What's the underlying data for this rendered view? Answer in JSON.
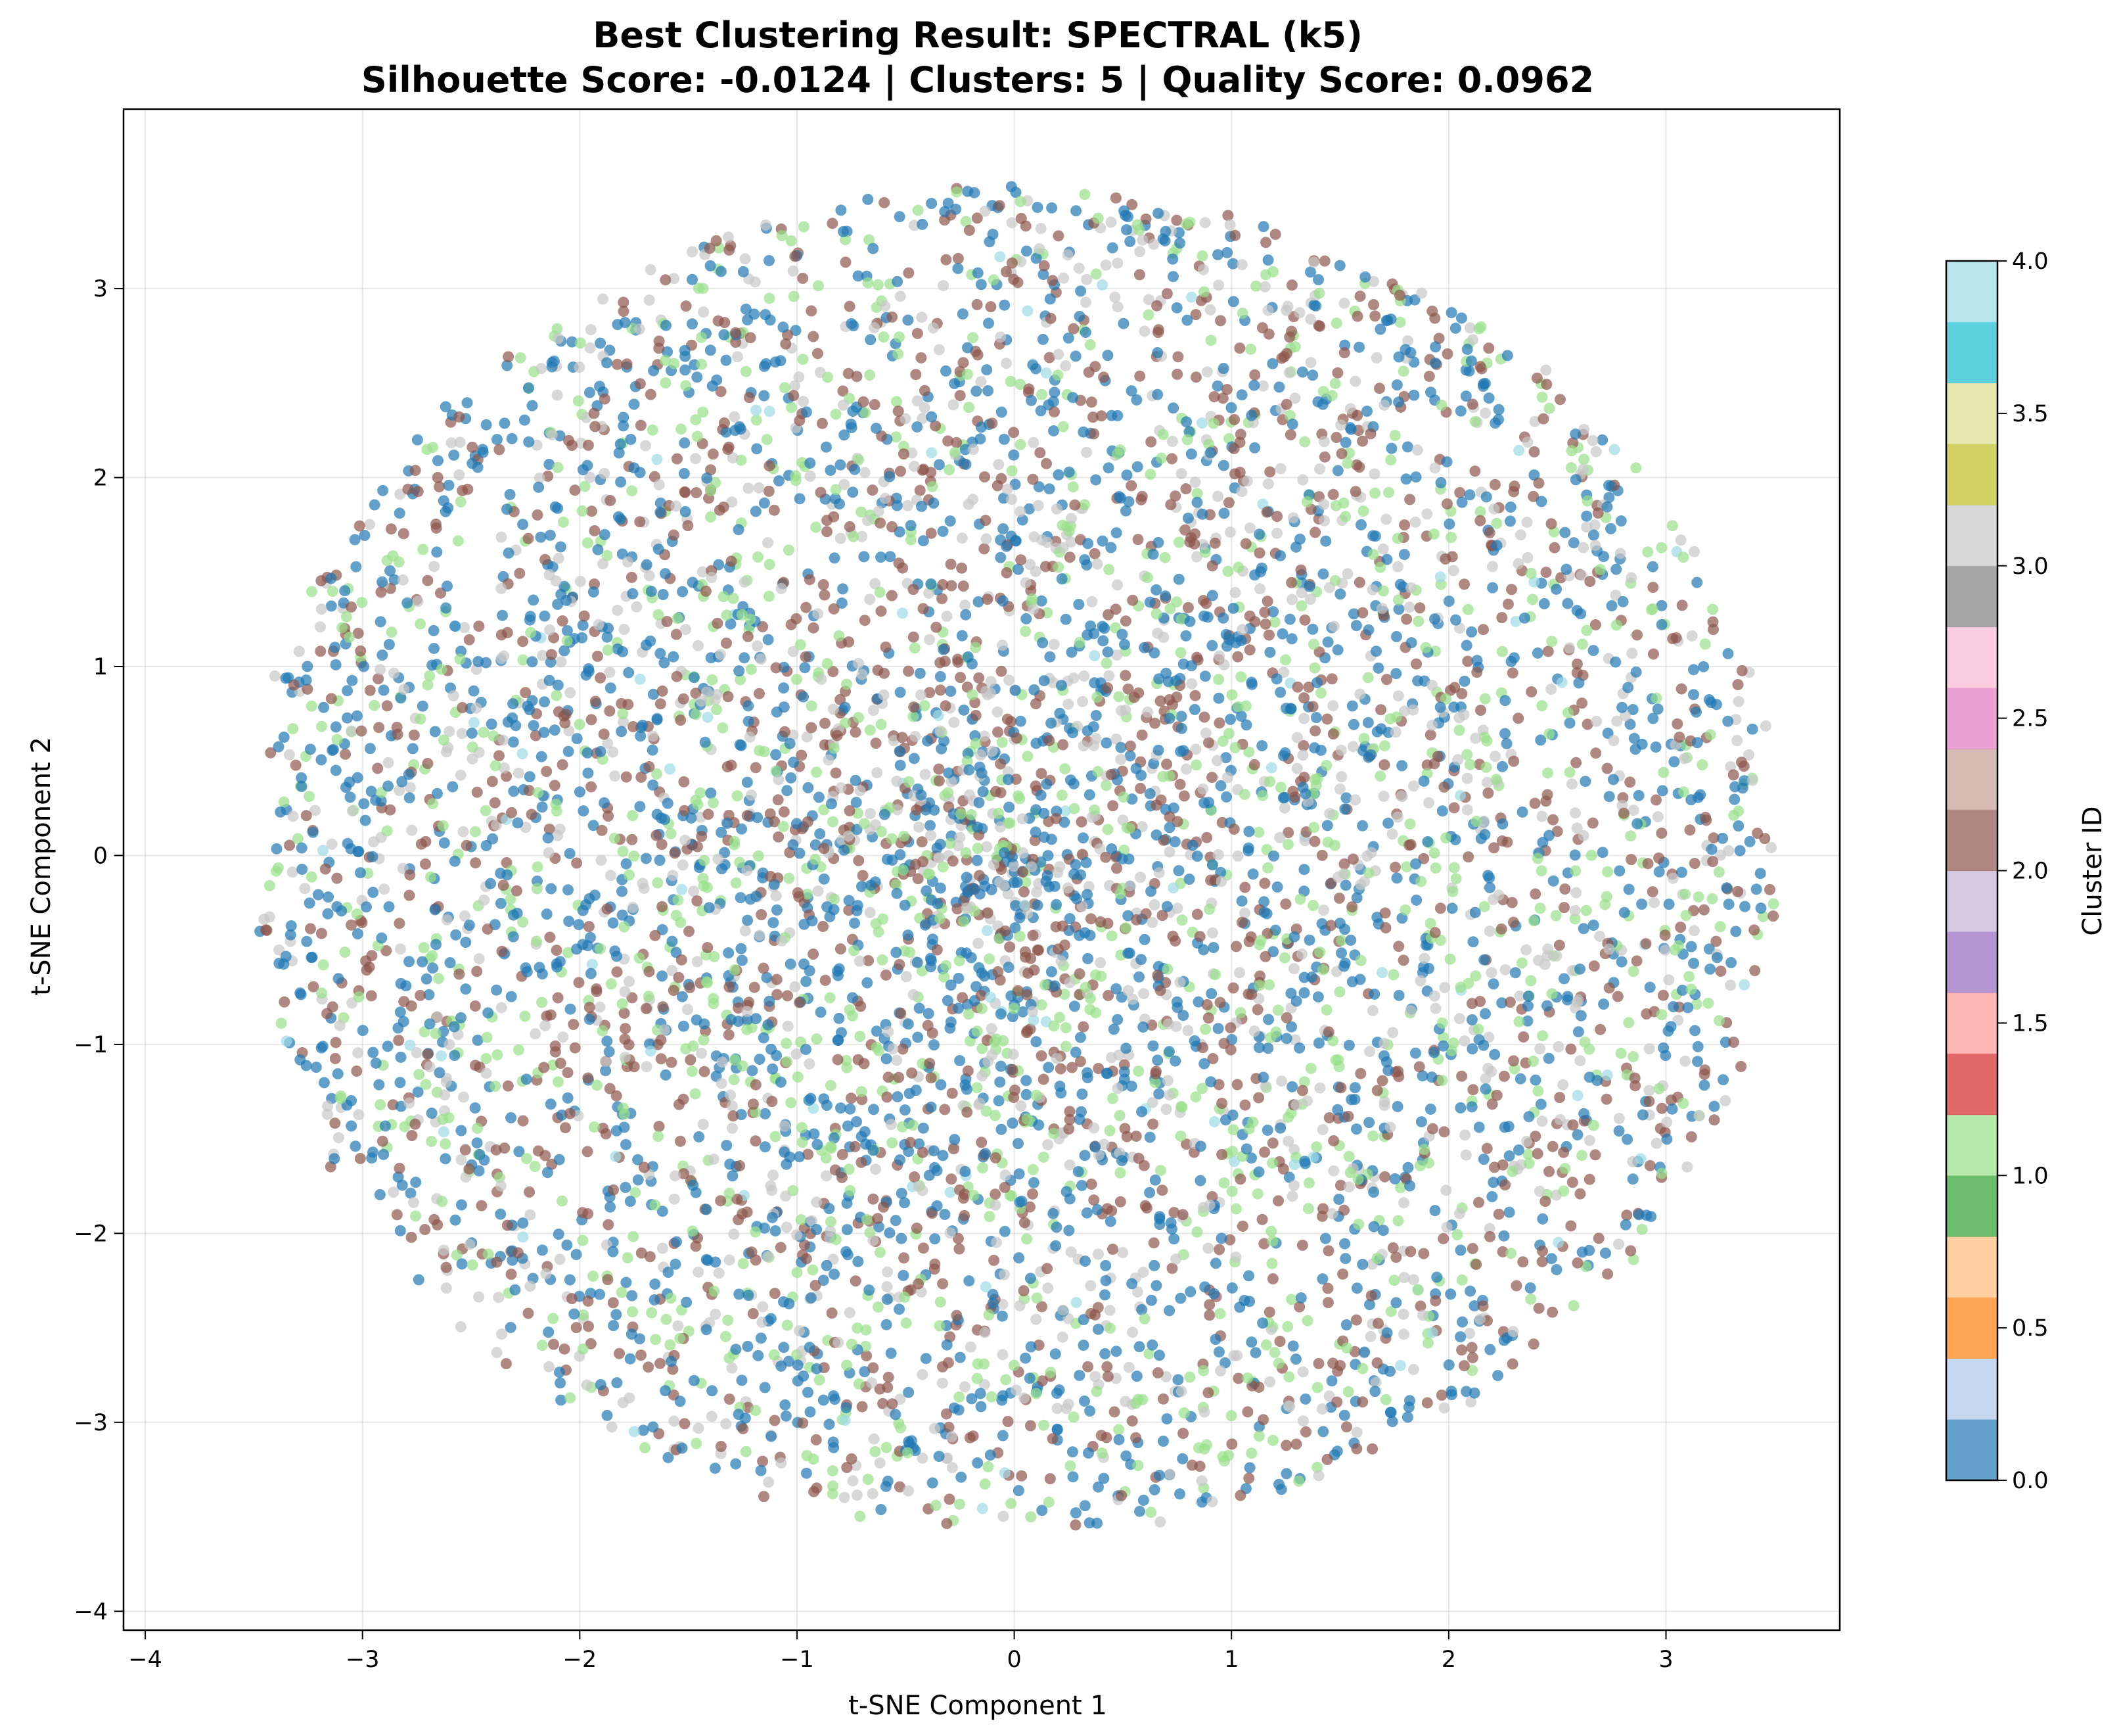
{
  "chart_data": {
    "type": "scatter",
    "title_line1": "Best Clustering Result: SPECTRAL (k5)",
    "title_line2": "Silhouette Score: -0.0124 | Clusters: 5 | Quality Score: 0.0962",
    "xlabel": "t-SNE Component 1",
    "ylabel": "t-SNE Component 2",
    "xlim": [
      -4.1,
      3.8
    ],
    "ylim": [
      -4.1,
      3.95
    ],
    "xticks": [
      -4,
      -3,
      -2,
      -1,
      0,
      1,
      2,
      3
    ],
    "yticks": [
      -4,
      -3,
      -2,
      -1,
      0,
      1,
      2,
      3
    ],
    "xtick_labels": [
      "−4",
      "−3",
      "−2",
      "−1",
      "0",
      "1",
      "2",
      "3"
    ],
    "ytick_labels": [
      "−4",
      "−3",
      "−2",
      "−1",
      "0",
      "1",
      "2",
      "3"
    ],
    "grid": true,
    "point_distribution": {
      "shape": "disk",
      "center": [
        0.0,
        0.0
      ],
      "radius": 3.5,
      "approx_points": 6500
    },
    "clusters": [
      {
        "id": 0,
        "color": "#1f77b4",
        "share": 0.36
      },
      {
        "id": 1,
        "color": "#98df8a",
        "share": 0.19
      },
      {
        "id": 2,
        "color": "#8c564b",
        "share": 0.26
      },
      {
        "id": 3,
        "color": "#c7c7c7",
        "share": 0.18
      },
      {
        "id": 4,
        "color": "#9edae5",
        "share": 0.01
      }
    ],
    "point_alpha": 0.7,
    "colorbar": {
      "label": "Cluster ID",
      "range": [
        0,
        4
      ],
      "ticks": [
        0.0,
        0.5,
        1.0,
        1.5,
        2.0,
        2.5,
        3.0,
        3.5,
        4.0
      ],
      "tick_labels": [
        "0.0",
        "0.5",
        "1.0",
        "1.5",
        "2.0",
        "2.5",
        "3.0",
        "3.5",
        "4.0"
      ],
      "colormap": "tab20",
      "colors": [
        "#1f77b4",
        "#aec7e8",
        "#ff7f0e",
        "#ffbb78",
        "#2ca02c",
        "#98df8a",
        "#d62728",
        "#ff9896",
        "#9467bd",
        "#c5b0d5",
        "#8c564b",
        "#c49c94",
        "#e377c2",
        "#f7b6d2",
        "#7f7f7f",
        "#c7c7c7",
        "#bcbd22",
        "#dbdb8d",
        "#17becf",
        "#9edae5"
      ],
      "alpha": 0.7
    }
  }
}
